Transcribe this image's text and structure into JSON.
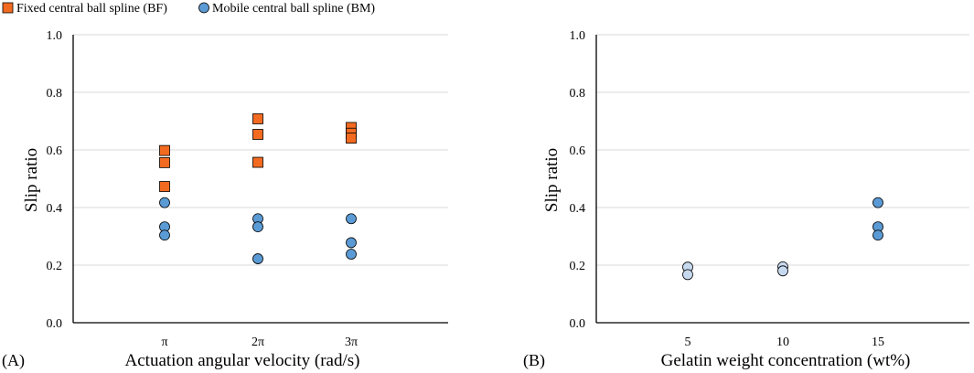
{
  "chart_data": [
    {
      "type": "scatter",
      "panel_label": "(A)",
      "xlabel": "Actuation angular velocity (rad/s)",
      "ylabel": "Slip ratio",
      "ylim": [
        0,
        1
      ],
      "yticks": [
        "0.0",
        "0.2",
        "0.4",
        "0.6",
        "0.8",
        "1.0"
      ],
      "categories": [
        "π",
        "2π",
        "3π"
      ],
      "grid": true,
      "legend": [
        {
          "name": "Fixed central ball spline (BF)",
          "marker": "square",
          "color": "#f26b21"
        },
        {
          "name": "Mobile central ball spline (BM)",
          "marker": "circle",
          "color": "#5b9bd5"
        }
      ],
      "series": [
        {
          "name": "Fixed central ball spline (BF)",
          "marker": "square",
          "color": "#f26b21",
          "points": [
            [
              1,
              0.598
            ],
            [
              1,
              0.556
            ],
            [
              1,
              0.473
            ],
            [
              2,
              0.708
            ],
            [
              2,
              0.654
            ],
            [
              2,
              0.557
            ],
            [
              3,
              0.678
            ],
            [
              3,
              0.658
            ],
            [
              3,
              0.641
            ]
          ]
        },
        {
          "name": "Mobile central ball spline (BM)",
          "marker": "circle",
          "color": "#5b9bd5",
          "points": [
            [
              1,
              0.417
            ],
            [
              1,
              0.333
            ],
            [
              1,
              0.304
            ],
            [
              2,
              0.361
            ],
            [
              2,
              0.333
            ],
            [
              2,
              0.222
            ],
            [
              3,
              0.361
            ],
            [
              3,
              0.278
            ],
            [
              3,
              0.238
            ]
          ]
        }
      ]
    },
    {
      "type": "scatter",
      "panel_label": "(B)",
      "xlabel": "Gelatin weight concentration (wt%)",
      "ylabel": "Slip ratio",
      "ylim": [
        0,
        1
      ],
      "yticks": [
        "0.0",
        "0.2",
        "0.4",
        "0.6",
        "0.8",
        "1.0"
      ],
      "categories": [
        "5",
        "10",
        "15"
      ],
      "grid": true,
      "series": [
        {
          "name": "Mobile central ball spline (BM)",
          "marker": "circle",
          "points": [
            [
              1,
              0.193,
              "#c7d9ef"
            ],
            [
              1,
              0.167,
              "#c7d9ef"
            ],
            [
              2,
              0.194,
              "#c7d9ef"
            ],
            [
              2,
              0.18,
              "#c7d9ef"
            ],
            [
              3,
              0.417,
              "#5b9bd5"
            ],
            [
              3,
              0.333,
              "#5b9bd5"
            ],
            [
              3,
              0.304,
              "#5b9bd5"
            ]
          ]
        }
      ]
    }
  ]
}
